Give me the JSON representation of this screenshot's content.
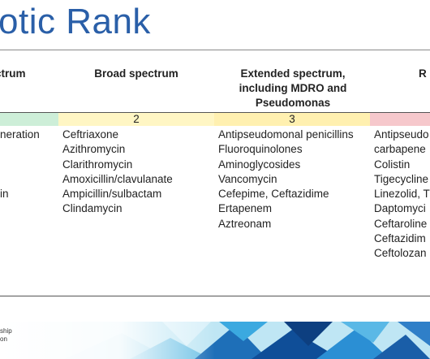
{
  "slide": {
    "title": "otic Rank",
    "headers": [
      "ctrum",
      "Broad spectrum",
      "Extended spectrum, including MDRO and Pseudomonas",
      "R"
    ],
    "rank_labels": [
      "",
      "2",
      "3",
      ""
    ],
    "rank_colors": [
      "#cdeed8",
      "#fff6c4",
      "#fff0b0",
      "#f6c8cc"
    ],
    "columns": [
      [
        "neration",
        "",
        "",
        "",
        "in"
      ],
      [
        "Ceftriaxone",
        "Azithromycin",
        "Clarithromycin",
        "Amoxicillin/clavulanate",
        "Ampicillin/sulbactam",
        "Clindamycin"
      ],
      [
        "Antipseudomonal penicillins",
        "Fluoroquinolones",
        "Aminoglycosides",
        "Vancomycin",
        "Cefepime, Ceftazidime",
        "Ertapenem",
        "Aztreonam"
      ],
      [
        "Antipseudo",
        "carbapene",
        "Colistin",
        "Tigecycline",
        "Linezolid, T",
        "Daptomyci",
        "Ceftaroline",
        "Ceftazidim",
        "Ceftolozan"
      ]
    ],
    "footer": {
      "line1": "ship",
      "line2": "on"
    }
  }
}
